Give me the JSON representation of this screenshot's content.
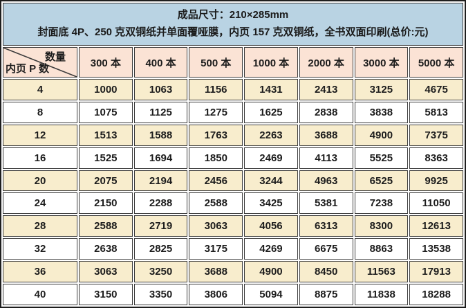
{
  "header": {
    "line1": "成品尺寸：210×285mm",
    "line2": "封面底 4P、250 克双铜纸并单面覆哑膜，内页 157 克双铜纸，全书双面印刷(总价:元)"
  },
  "table": {
    "corner": {
      "top_label": "数量",
      "bottom_label": "内页 P 数"
    },
    "columns": [
      "300 本",
      "400 本",
      "500 本",
      "1000 本",
      "2000 本",
      "3000 本",
      "5000 本"
    ],
    "rows": [
      {
        "pages": "4",
        "prices": [
          "1000",
          "1063",
          "1156",
          "1431",
          "2413",
          "3125",
          "4675"
        ]
      },
      {
        "pages": "8",
        "prices": [
          "1075",
          "1125",
          "1275",
          "1625",
          "2838",
          "3838",
          "5813"
        ]
      },
      {
        "pages": "12",
        "prices": [
          "1513",
          "1588",
          "1763",
          "2263",
          "3688",
          "4900",
          "7375"
        ]
      },
      {
        "pages": "16",
        "prices": [
          "1525",
          "1694",
          "1850",
          "2469",
          "4113",
          "5525",
          "8363"
        ]
      },
      {
        "pages": "20",
        "prices": [
          "2075",
          "2194",
          "2456",
          "3244",
          "4963",
          "6525",
          "9925"
        ]
      },
      {
        "pages": "24",
        "prices": [
          "2150",
          "2288",
          "2588",
          "3425",
          "5381",
          "7238",
          "11050"
        ]
      },
      {
        "pages": "28",
        "prices": [
          "2588",
          "2719",
          "3063",
          "4056",
          "6313",
          "8300",
          "12613"
        ]
      },
      {
        "pages": "32",
        "prices": [
          "2638",
          "2825",
          "3175",
          "4269",
          "6675",
          "8863",
          "13538"
        ]
      },
      {
        "pages": "36",
        "prices": [
          "3063",
          "3250",
          "3688",
          "4900",
          "8450",
          "11563",
          "17913"
        ]
      },
      {
        "pages": "40",
        "prices": [
          "3150",
          "3350",
          "3806",
          "5094",
          "8875",
          "11838",
          "18288"
        ]
      }
    ]
  },
  "colors": {
    "title_bg": "#b9d3e3",
    "header_bg": "#fbe3d5",
    "row_alt_bg": "#f8edcd",
    "row_bg": "#ffffff",
    "border": "#3c3c3c",
    "outer_border": "#1e1e1e",
    "text": "#1c1c1c"
  }
}
